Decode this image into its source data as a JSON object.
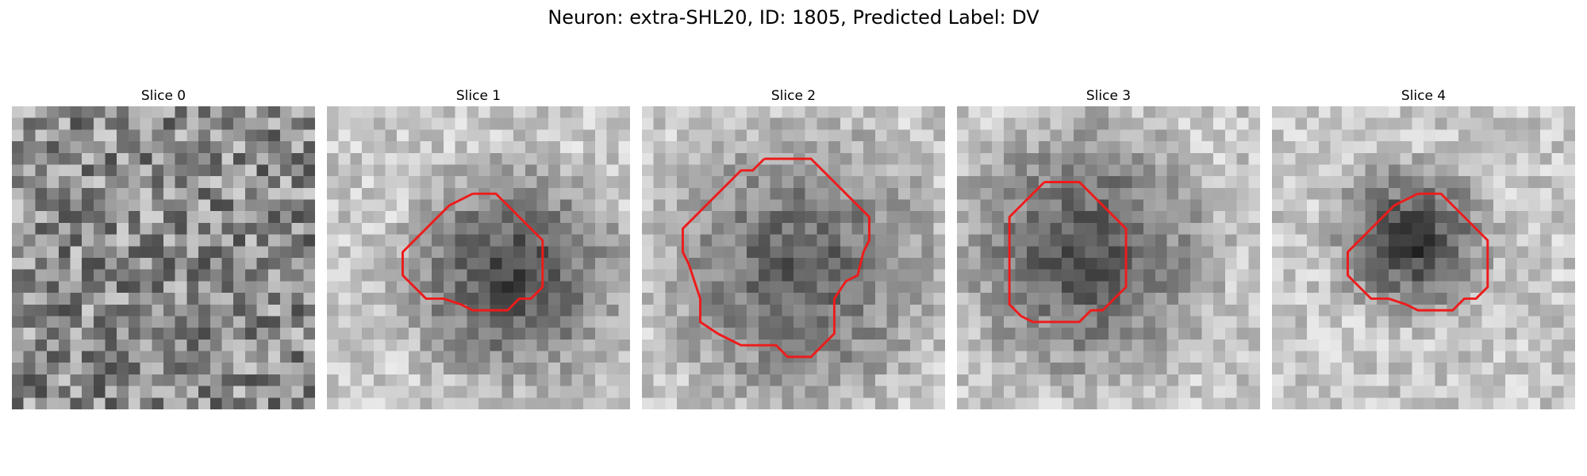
{
  "figure": {
    "title": "Neuron: extra-SHL20, ID: 1805, Predicted Label: DV"
  },
  "panels": [
    {
      "title": "Slice 0",
      "blob": null,
      "outline": null
    },
    {
      "title": "Slice 1",
      "blob": {
        "cx": 16,
        "cy": 14.5,
        "r": 6.0,
        "depth": 0.55,
        "halo": 1.9
      },
      "outline": [
        [
          12.5,
          7.5
        ],
        [
          14.5,
          7.5
        ],
        [
          15.5,
          8.5
        ],
        [
          17.5,
          10.5
        ],
        [
          18.5,
          11.5
        ],
        [
          18.5,
          14.5
        ],
        [
          18.5,
          15.5
        ],
        [
          17.5,
          16.5
        ],
        [
          16.5,
          16.5
        ],
        [
          15.5,
          17.5
        ],
        [
          12.5,
          17.5
        ],
        [
          11.5,
          17
        ],
        [
          10,
          16.5
        ],
        [
          8.5,
          16.5
        ],
        [
          7.5,
          15.5
        ],
        [
          6.5,
          14.5
        ],
        [
          6.5,
          12.5
        ],
        [
          7.5,
          11.5
        ],
        [
          8.5,
          10.5
        ],
        [
          9.5,
          9.5
        ],
        [
          10.5,
          8.5
        ],
        [
          11.5,
          8
        ],
        [
          12.5,
          7.5
        ]
      ]
    },
    {
      "title": "Slice 2",
      "blob": {
        "cx": 13.5,
        "cy": 14.0,
        "r": 8.0,
        "depth": 0.45,
        "halo": 1.8
      },
      "outline": [
        [
          10.5,
          4.5
        ],
        [
          14.5,
          4.5
        ],
        [
          15.5,
          5.5
        ],
        [
          16.5,
          6.5
        ],
        [
          17.5,
          7.5
        ],
        [
          18.5,
          8.5
        ],
        [
          19.5,
          9.5
        ],
        [
          19.5,
          10.5
        ],
        [
          19.5,
          11.5
        ],
        [
          19,
          12.5
        ],
        [
          18.5,
          14.5
        ],
        [
          17.5,
          15
        ],
        [
          16.5,
          16.5
        ],
        [
          16.5,
          17.5
        ],
        [
          16.5,
          19.5
        ],
        [
          15.5,
          20.5
        ],
        [
          14.5,
          21.5
        ],
        [
          12.5,
          21.5
        ],
        [
          11.5,
          20.5
        ],
        [
          8.5,
          20.5
        ],
        [
          6.5,
          19.5
        ],
        [
          5,
          18.5
        ],
        [
          5,
          16.5
        ],
        [
          4.5,
          15
        ],
        [
          4,
          13.5
        ],
        [
          3.5,
          12.5
        ],
        [
          3.5,
          10.5
        ],
        [
          4.5,
          9.5
        ],
        [
          5.5,
          8.5
        ],
        [
          6.5,
          7.5
        ],
        [
          7.5,
          6.5
        ],
        [
          8.5,
          5.5
        ],
        [
          9.5,
          5.5
        ],
        [
          10.5,
          4.5
        ]
      ]
    },
    {
      "title": "Slice 3",
      "blob": {
        "cx": 11.0,
        "cy": 12.5,
        "r": 7.0,
        "depth": 0.5,
        "halo": 1.9
      },
      "outline": [
        [
          7.5,
          6.5
        ],
        [
          10.5,
          6.5
        ],
        [
          11.5,
          7.5
        ],
        [
          12.5,
          8.5
        ],
        [
          13.5,
          9.5
        ],
        [
          14.5,
          10.5
        ],
        [
          14.5,
          15.5
        ],
        [
          13.5,
          16.5
        ],
        [
          12.5,
          17.5
        ],
        [
          11.5,
          17.5
        ],
        [
          10.5,
          18.5
        ],
        [
          7.5,
          18.5
        ],
        [
          6.5,
          18.5
        ],
        [
          5.5,
          18
        ],
        [
          4.5,
          17
        ],
        [
          4.5,
          16
        ],
        [
          4.5,
          12.5
        ],
        [
          4.5,
          9.5
        ],
        [
          5.5,
          8.5
        ],
        [
          6.5,
          7.5
        ],
        [
          7.5,
          6.5
        ]
      ]
    },
    {
      "title": "Slice 4",
      "blob": {
        "cx": 12.0,
        "cy": 11.5,
        "r": 4.5,
        "depth": 0.6,
        "halo": 1.8
      },
      "outline": [
        [
          12.5,
          7.5
        ],
        [
          14.5,
          7.5
        ],
        [
          15.5,
          8.5
        ],
        [
          17.5,
          10.5
        ],
        [
          18.5,
          11.5
        ],
        [
          18.5,
          14.5
        ],
        [
          18.5,
          15.5
        ],
        [
          17.5,
          16.5
        ],
        [
          16.5,
          16.5
        ],
        [
          15.5,
          17.5
        ],
        [
          12.5,
          17.5
        ],
        [
          11.5,
          17
        ],
        [
          10,
          16.5
        ],
        [
          8.5,
          16.5
        ],
        [
          7.5,
          15.5
        ],
        [
          6.5,
          14.5
        ],
        [
          6.5,
          12.5
        ],
        [
          7.5,
          11.5
        ],
        [
          8.5,
          10.5
        ],
        [
          9.5,
          9.5
        ],
        [
          10.5,
          8.5
        ],
        [
          11.5,
          8
        ],
        [
          12.5,
          7.5
        ]
      ]
    }
  ],
  "colors": {
    "outline": "#ee1b1b"
  }
}
